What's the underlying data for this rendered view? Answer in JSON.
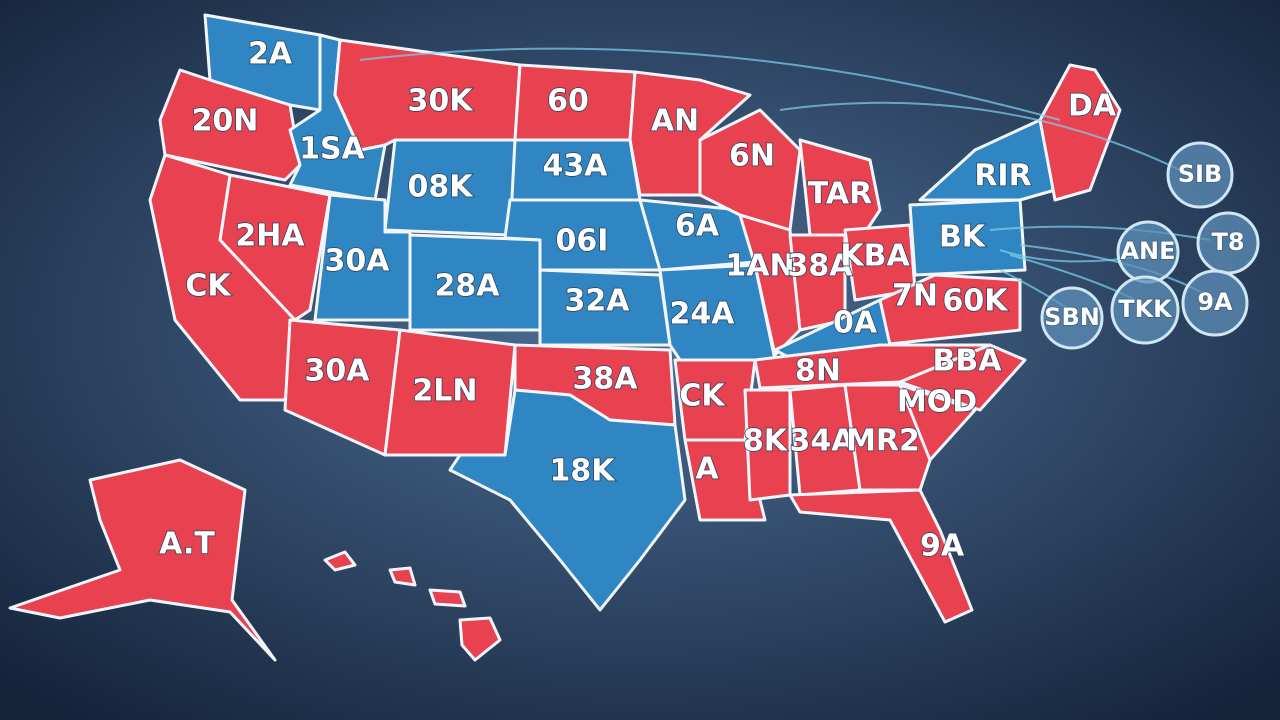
{
  "state_labels": [
    "2A",
    "20N",
    "1SA",
    "30K",
    "60",
    "AN",
    "43A",
    "08K",
    "2HA",
    "CK",
    "30A",
    "28A",
    "06I",
    "32A",
    "6A",
    "24A",
    "6N",
    "TAR",
    "1AN",
    "38A",
    "KBA",
    "BK",
    "RIR",
    "DA",
    "7N",
    "60K",
    "0A",
    "30A",
    "2LN",
    "38A",
    "CK",
    "8N",
    "BBA",
    "MOD",
    "8K",
    "34A",
    "MR2",
    "A",
    "18K",
    "9A",
    "A.T"
  ],
  "bubble_labels": [
    "SIB",
    "T8",
    "ANE",
    "SBN",
    "TKK",
    "9A"
  ]
}
